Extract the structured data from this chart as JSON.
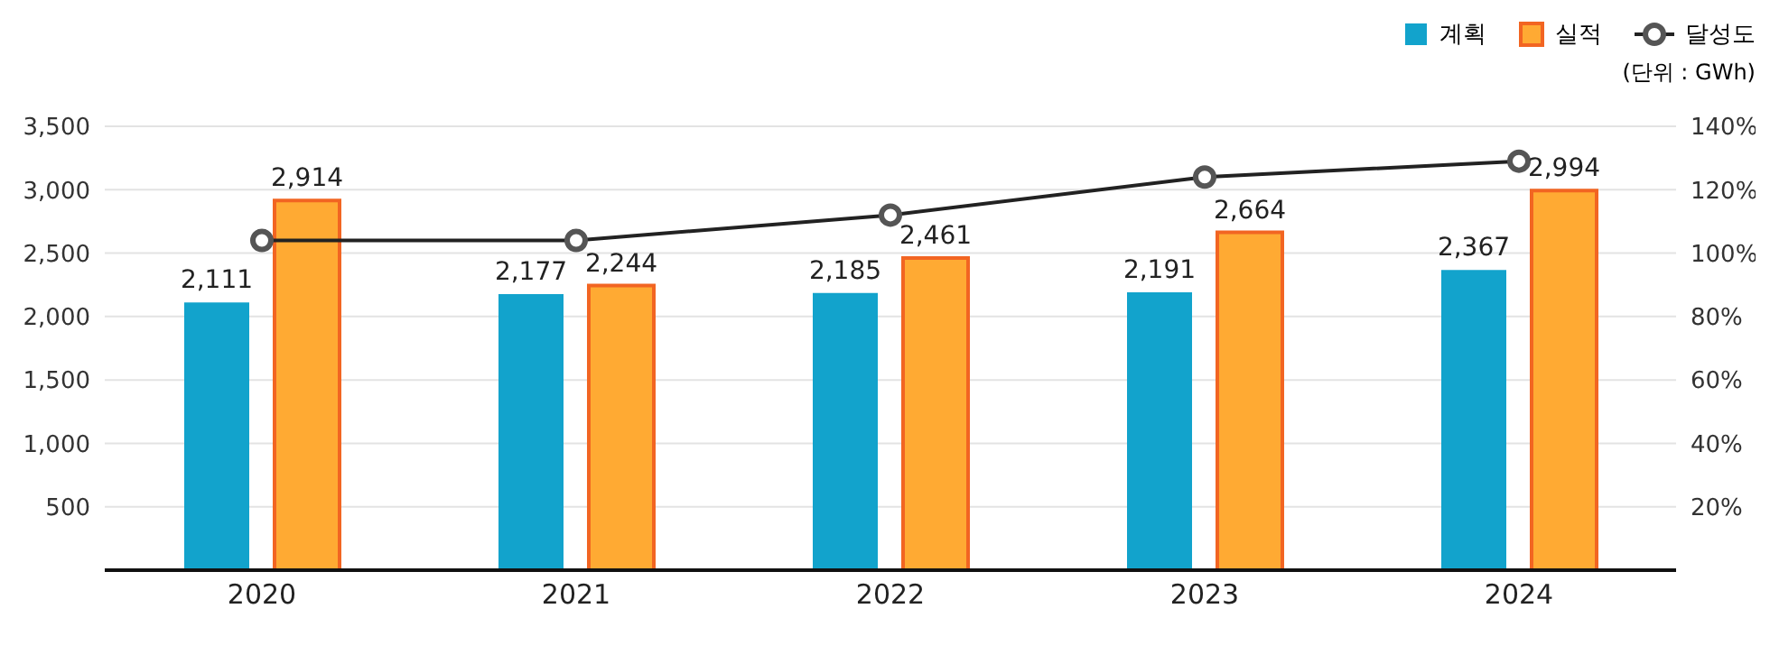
{
  "chart_data": {
    "type": "bar",
    "annotations": [
      "(단위 : GWh)"
    ],
    "categories": [
      "2020",
      "2021",
      "2022",
      "2023",
      "2024"
    ],
    "series": [
      {
        "name": "계획",
        "color": "#12a3cc",
        "values": [
          2111,
          2177,
          2185,
          2191,
          2367
        ],
        "value_labels": [
          "2,111",
          "2,177",
          "2,185",
          "2,191",
          "2,367"
        ]
      },
      {
        "name": "실적",
        "color": "#ffaa33",
        "values": [
          2914,
          2244,
          2461,
          2664,
          2994
        ],
        "value_labels": [
          "2,914",
          "2,244",
          "2,461",
          "2,664",
          "2,994"
        ]
      },
      {
        "name": "달성도",
        "type": "line",
        "axis": "y2",
        "color": "#222222",
        "marker": "circle",
        "values": [
          104,
          104,
          112,
          124,
          129
        ]
      }
    ],
    "ylim": [
      0,
      3500
    ],
    "yticks": [
      {
        "value": 0,
        "label": null
      },
      {
        "value": 500,
        "label": "500"
      },
      {
        "value": 1000,
        "label": "1,000"
      },
      {
        "value": 1500,
        "label": "1,500"
      },
      {
        "value": 2000,
        "label": "2,000"
      },
      {
        "value": 2500,
        "label": "2,500"
      },
      {
        "value": 3000,
        "label": "3,000"
      },
      {
        "value": 3500,
        "label": "3,500"
      }
    ],
    "y2lim": [
      0,
      140
    ],
    "y2ticks": [
      {
        "value": 0,
        "label": null
      },
      {
        "value": 20,
        "label": "20%"
      },
      {
        "value": 40,
        "label": "40%"
      },
      {
        "value": 60,
        "label": "60%"
      },
      {
        "value": 80,
        "label": "80%"
      },
      {
        "value": 100,
        "label": "100%"
      },
      {
        "value": 120,
        "label": "120%"
      },
      {
        "value": 140,
        "label": "140%"
      }
    ],
    "grid": "y",
    "legend": "top right"
  }
}
